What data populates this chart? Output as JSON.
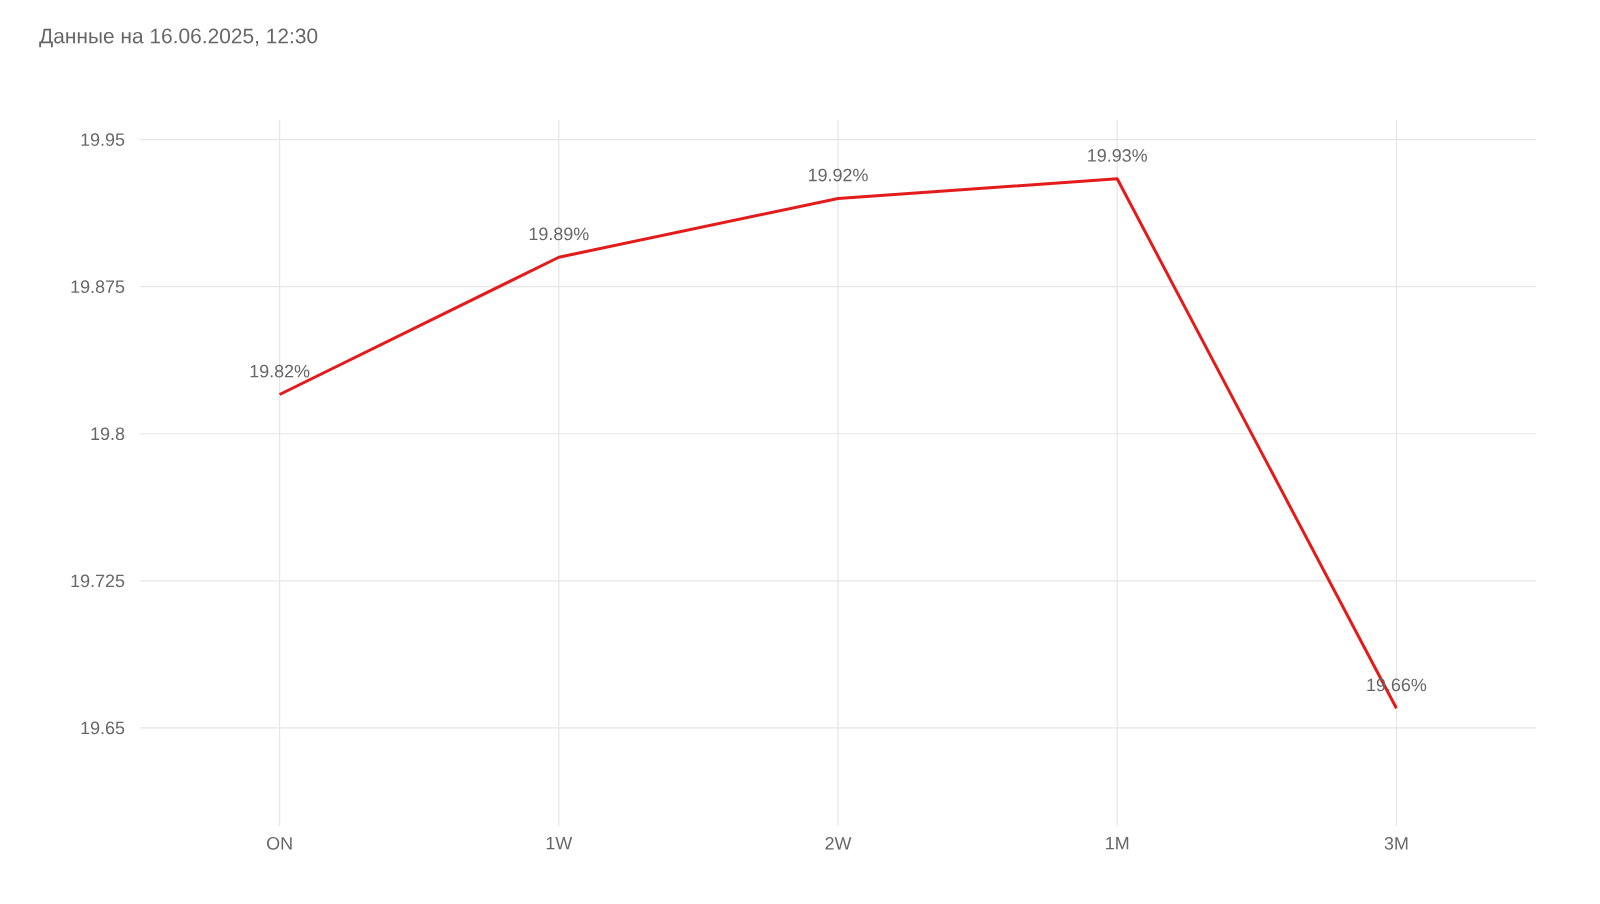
{
  "chart_data": {
    "type": "line",
    "title": "Данные на 16.06.2025, 12:30",
    "categories": [
      "ON",
      "1W",
      "2W",
      "1M",
      "3M"
    ],
    "values": [
      19.82,
      19.89,
      19.92,
      19.93,
      19.66
    ],
    "value_labels": [
      "19.82%",
      "19.89%",
      "19.92%",
      "19.93%",
      "19.66%"
    ],
    "color": "#e31b1b",
    "ylim": [
      19.6,
      19.96
    ],
    "yticks": [
      19.65,
      19.725,
      19.8,
      19.875,
      19.95
    ],
    "grid": true
  }
}
